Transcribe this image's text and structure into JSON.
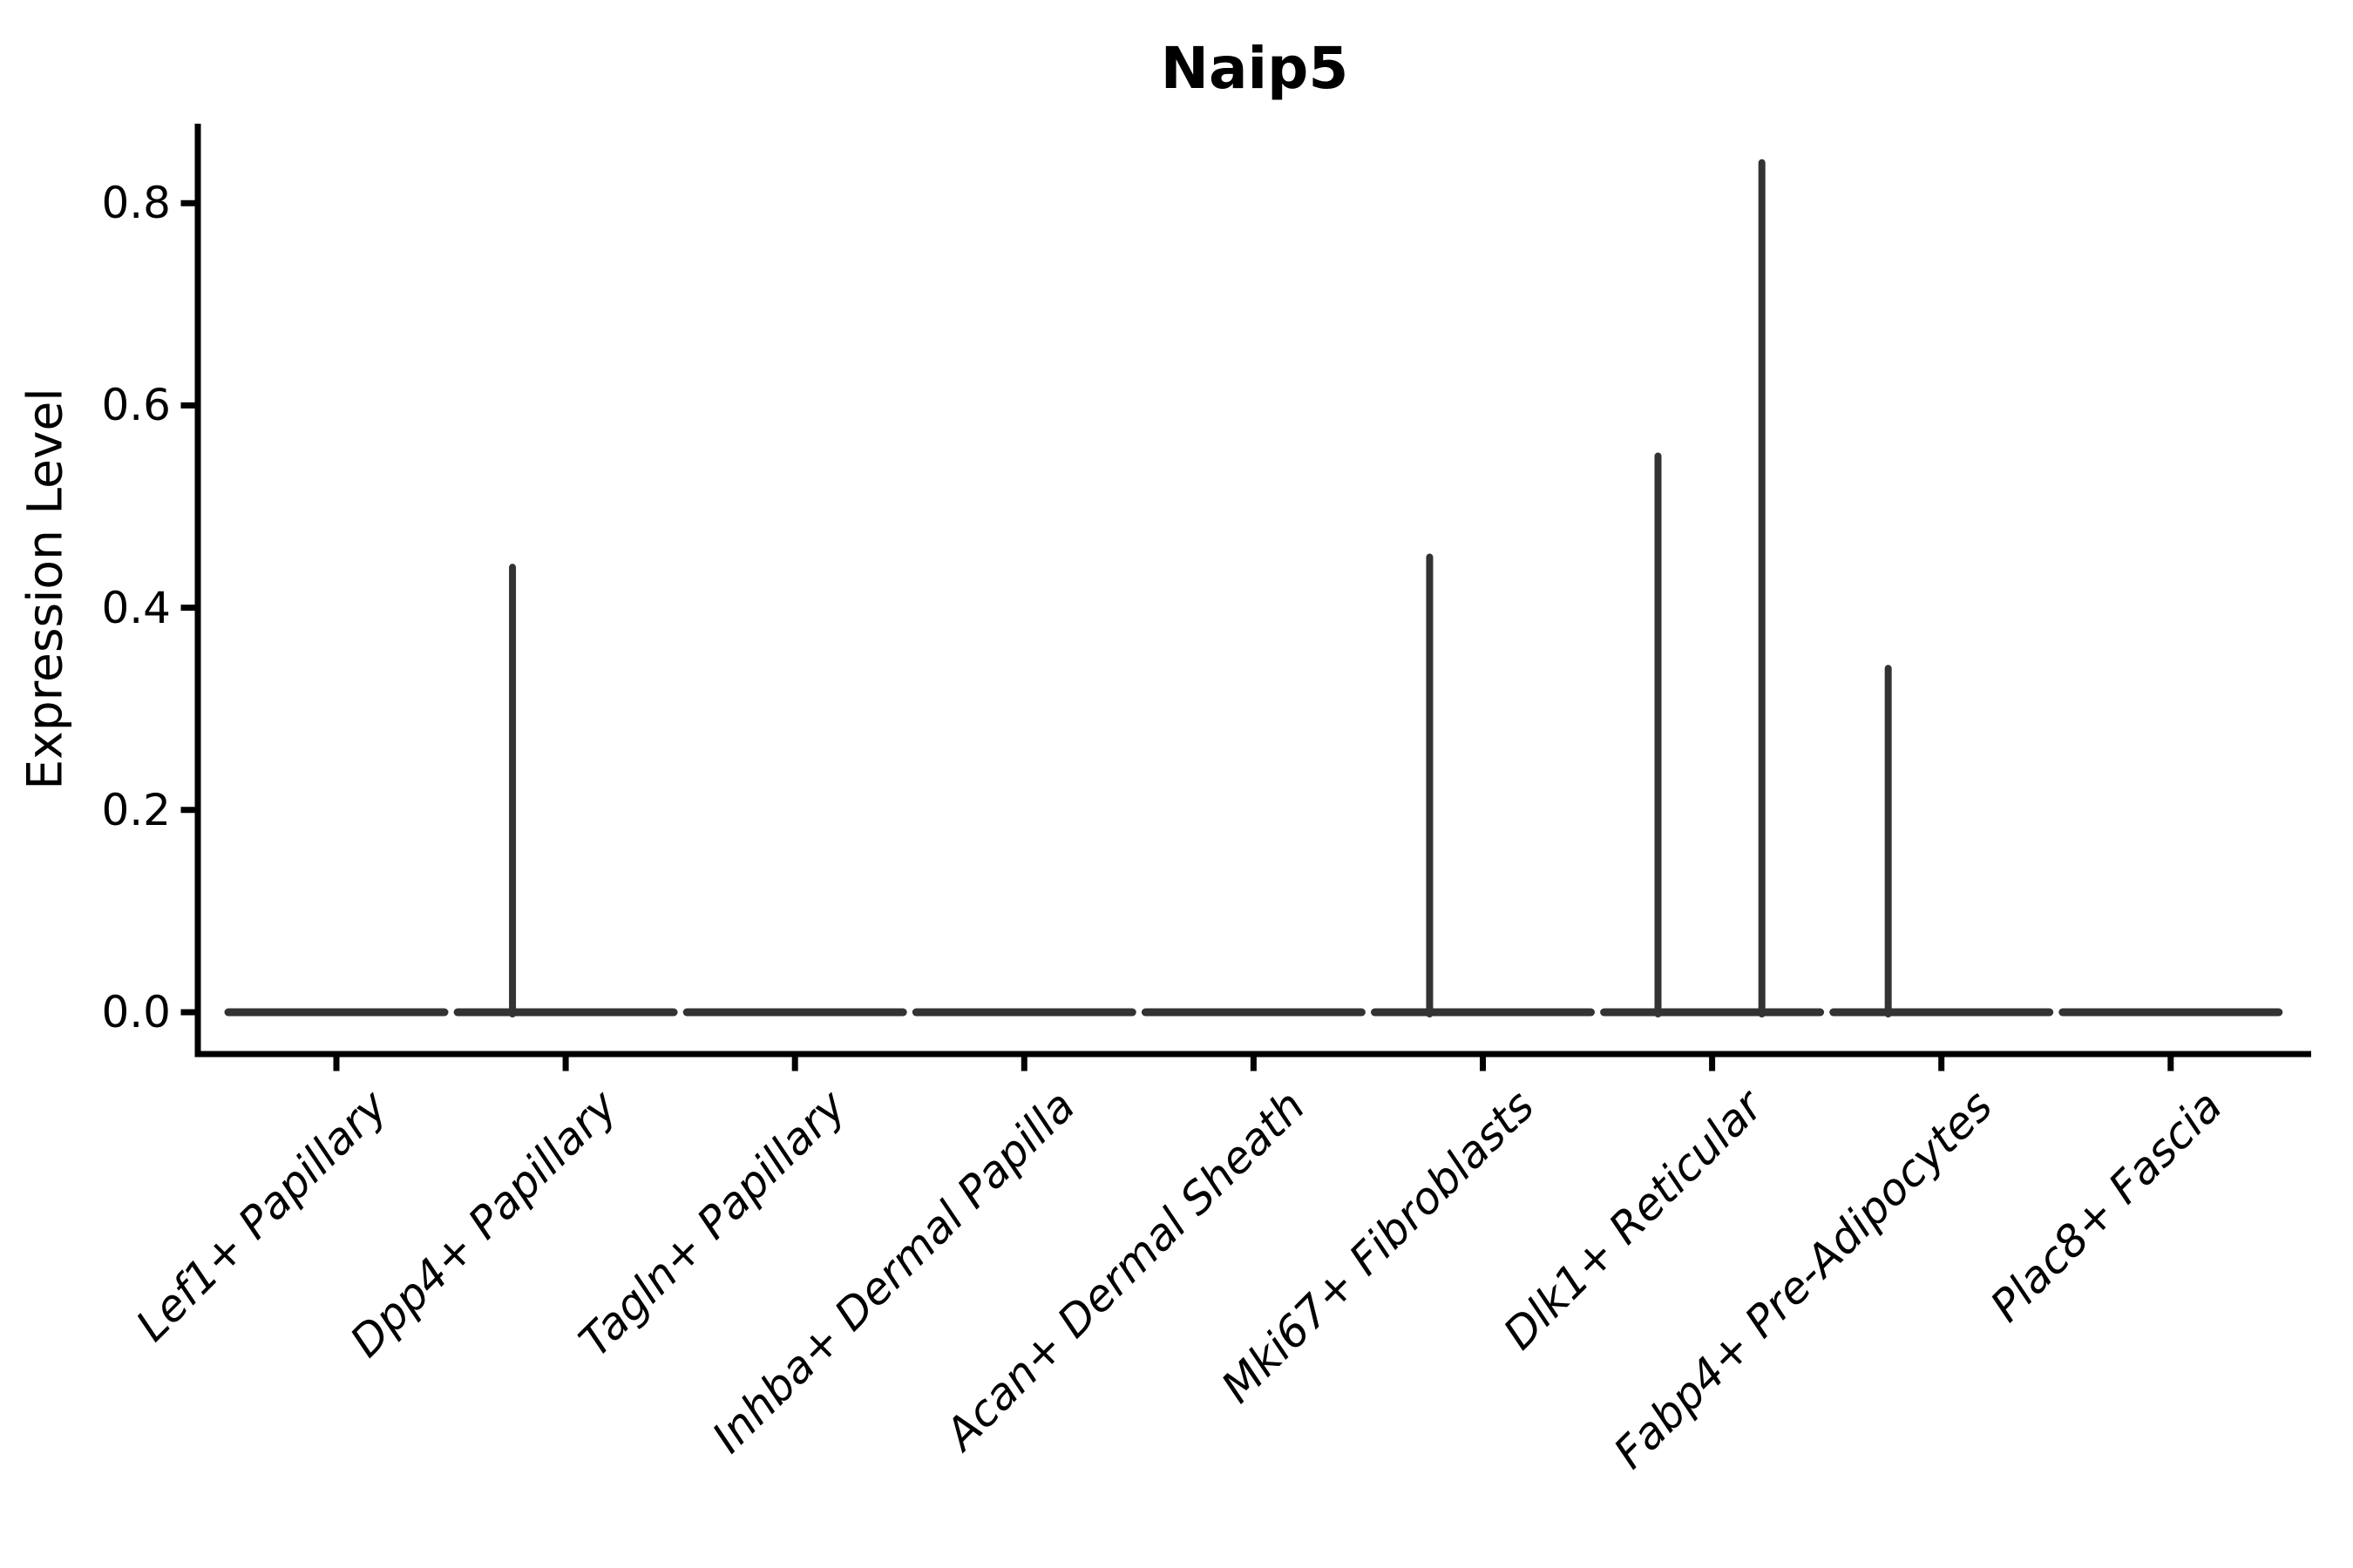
{
  "chart_data": {
    "type": "violin",
    "title": "Naip5",
    "xlabel": "",
    "ylabel": "Expression Level",
    "ytick_labels": [
      "0.0",
      "0.2",
      "0.4",
      "0.6",
      "0.8"
    ],
    "ylim": [
      -0.04,
      0.88
    ],
    "grid": false,
    "legend": "none",
    "categories": [
      "Lef1+ Papillary",
      "Dpp4+ Papillary",
      "Tagln+ Papillary",
      "Inhba+ Dermal Papilla",
      "Acan+ Dermal Sheath",
      "Mki67+ Fibroblasts",
      "Dlk1+ Reticular",
      "Fabp4+ Pre-Adipocytes",
      "Plac8+ Fascia"
    ],
    "violins": [
      {
        "category": "Lef1+ Papillary",
        "base_value": 0.0,
        "spikes": []
      },
      {
        "category": "Dpp4+ Papillary",
        "base_value": 0.0,
        "spikes": [
          {
            "value": 0.44,
            "x_offset_frac": -0.232
          }
        ]
      },
      {
        "category": "Tagln+ Papillary",
        "base_value": 0.0,
        "spikes": []
      },
      {
        "category": "Inhba+ Dermal Papilla",
        "base_value": 0.0,
        "spikes": []
      },
      {
        "category": "Acan+ Dermal Sheath",
        "base_value": 0.0,
        "spikes": []
      },
      {
        "category": "Mki67+ Fibroblasts",
        "base_value": 0.0,
        "spikes": [
          {
            "value": 0.45,
            "x_offset_frac": -0.232
          }
        ]
      },
      {
        "category": "Dlk1+ Reticular",
        "base_value": 0.0,
        "spikes": [
          {
            "value": 0.55,
            "x_offset_frac": -0.236
          },
          {
            "value": 0.84,
            "x_offset_frac": 0.217
          }
        ]
      },
      {
        "category": "Fabp4+ Pre-Adipocytes",
        "base_value": 0.0,
        "spikes": [
          {
            "value": 0.34,
            "x_offset_frac": -0.232
          }
        ]
      },
      {
        "category": "Plac8+ Fascia",
        "base_value": 0.0,
        "spikes": []
      }
    ],
    "colors": {
      "violin_line": "#333333",
      "axis": "#000000",
      "text": "#000000",
      "background": "#ffffff"
    }
  }
}
